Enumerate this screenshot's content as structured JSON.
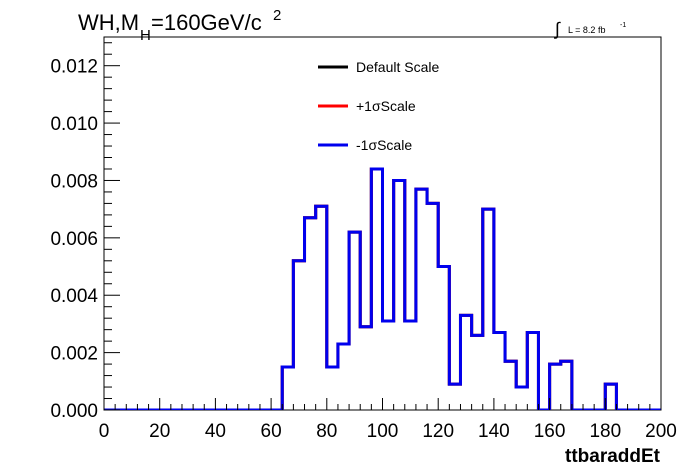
{
  "chart_data": {
    "type": "step",
    "title_main": "WH,M",
    "title_sub": "H",
    "title_rest": "=160GeV/c",
    "title_sup": "2",
    "lumi_prefix": "∫",
    "lumi_text": "L = 8.2 fb",
    "lumi_sup": "-1",
    "xlabel": "ttbaraddEt",
    "ylabel": "",
    "xlim": [
      0,
      200
    ],
    "ylim": [
      0,
      0.013
    ],
    "x_ticks": [
      0,
      20,
      40,
      60,
      80,
      100,
      120,
      140,
      160,
      180,
      200
    ],
    "x_tick_labels": [
      "0",
      "20",
      "40",
      "60",
      "80",
      "100",
      "120",
      "140",
      "160",
      "180",
      "200"
    ],
    "y_ticks": [
      0,
      0.002,
      0.004,
      0.006,
      0.008,
      0.01,
      0.012
    ],
    "y_tick_labels": [
      "0.000",
      "0.002",
      "0.004",
      "0.006",
      "0.008",
      "0.010",
      "0.012"
    ],
    "bin_width": 4,
    "bin_edges_start": 0,
    "series": [
      {
        "name": "Default Scale",
        "color": "#000000",
        "values": [
          0,
          0,
          0,
          0,
          0,
          0,
          0,
          0,
          0,
          0,
          0,
          0,
          0,
          0,
          0,
          0,
          0.0015,
          0.0052,
          0.0067,
          0.0071,
          0.0015,
          0.0023,
          0.0062,
          0.0029,
          0.0084,
          0.0031,
          0.008,
          0.0031,
          0.0077,
          0.0072,
          0.005,
          0.0009,
          0.0033,
          0.0026,
          0.007,
          0.0027,
          0.0017,
          0.0008,
          0.0027,
          0,
          0.0016,
          0.0017,
          0,
          0,
          0,
          0.0009,
          0,
          0,
          0,
          0
        ]
      },
      {
        "name": "+1σScale",
        "color": "#ff0000",
        "values": [
          0,
          0,
          0,
          0,
          0,
          0,
          0,
          0,
          0,
          0,
          0,
          0,
          0,
          0,
          0,
          0,
          0.0015,
          0.0052,
          0.0067,
          0.0071,
          0.0015,
          0.0023,
          0.0062,
          0.0029,
          0.0084,
          0.0031,
          0.008,
          0.0031,
          0.0077,
          0.0072,
          0.005,
          0.0009,
          0.0033,
          0.0026,
          0.007,
          0.0027,
          0.0017,
          0.0008,
          0.0027,
          0,
          0.0016,
          0.0017,
          0,
          0,
          0,
          0.0009,
          0,
          0,
          0,
          0
        ]
      },
      {
        "name": "-1σScale",
        "color": "#0000ee",
        "values": [
          0,
          0,
          0,
          0,
          0,
          0,
          0,
          0,
          0,
          0,
          0,
          0,
          0,
          0,
          0,
          0,
          0.0015,
          0.0052,
          0.0067,
          0.0071,
          0.0015,
          0.0023,
          0.0062,
          0.0029,
          0.0084,
          0.0031,
          0.008,
          0.0031,
          0.0077,
          0.0072,
          0.005,
          0.0009,
          0.0033,
          0.0026,
          0.007,
          0.0027,
          0.0017,
          0.0008,
          0.0027,
          0,
          0.0016,
          0.0017,
          0,
          0,
          0,
          0.0009,
          0,
          0,
          0,
          0
        ]
      }
    ],
    "legend_position": "top-center",
    "grid": false
  }
}
